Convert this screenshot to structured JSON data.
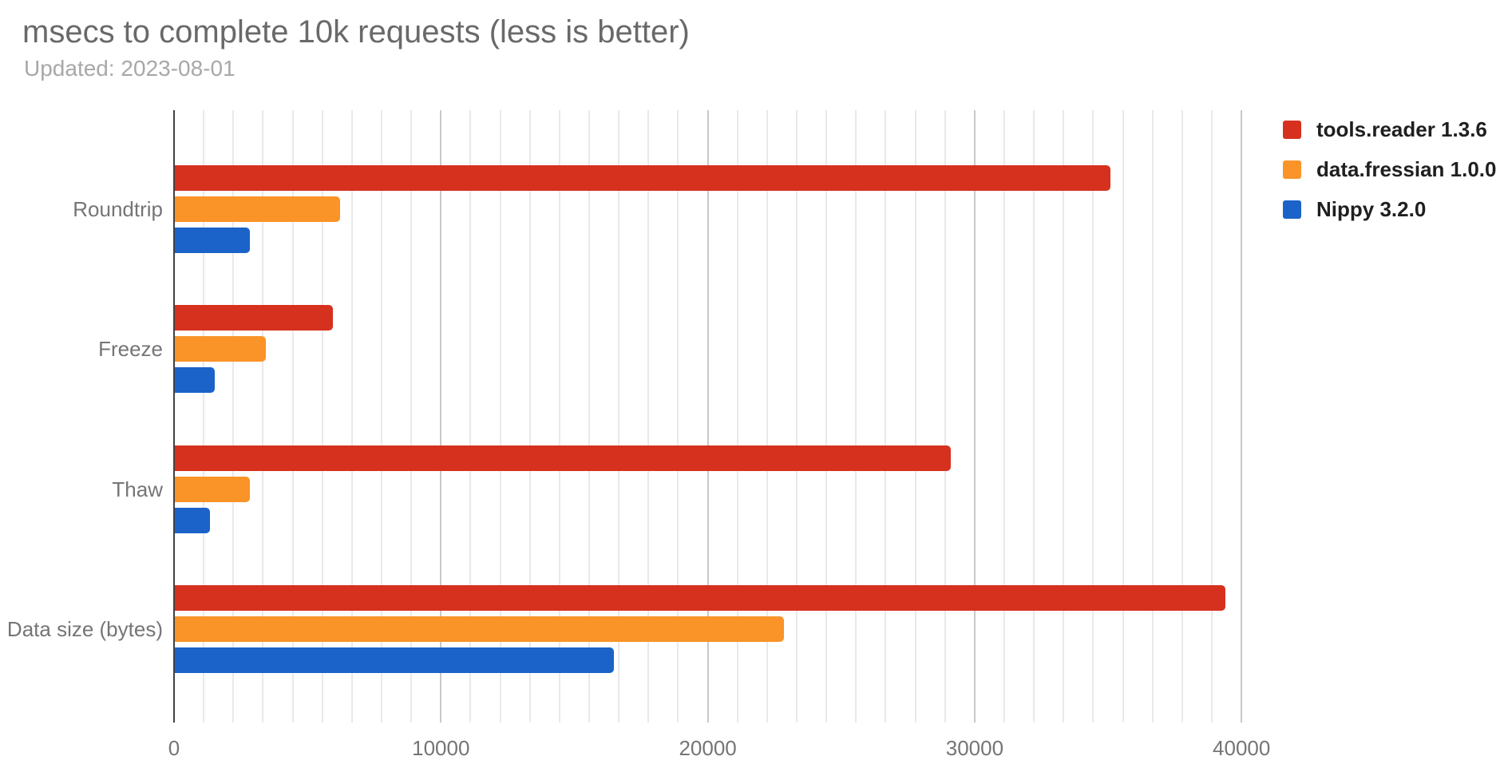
{
  "header": {
    "title": "msecs to complete 10k requests (less is better)",
    "subtitle": "Updated: 2023-08-01"
  },
  "chart_data": {
    "type": "bar",
    "orientation": "horizontal",
    "title": "msecs to complete 10k requests (less is better)",
    "subtitle": "Updated: 2023-08-01",
    "categories": [
      "Roundtrip",
      "Freeze",
      "Thaw",
      "Data size (bytes)"
    ],
    "series": [
      {
        "name": "tools.reader 1.3.6",
        "color": "#d5311e",
        "values": [
          35060,
          5920,
          29080,
          39360
        ]
      },
      {
        "name": "data.fressian 1.0.0",
        "color": "#fa9328",
        "values": [
          6190,
          3400,
          2810,
          22830
        ]
      },
      {
        "name": "Nippy 3.2.0",
        "color": "#1b63c8",
        "values": [
          2810,
          1490,
          1330,
          16440
        ]
      }
    ],
    "xlabel": "",
    "ylabel": "",
    "x_ticks": [
      0,
      10000,
      20000,
      30000,
      40000
    ],
    "x_tick_labels": [
      "0",
      "10000",
      "20000",
      "30000",
      "40000"
    ],
    "xlim": [
      0,
      47000
    ],
    "grid": true,
    "minor_gridlines_per_major": 8,
    "legend_position": "top-right",
    "colors": {
      "title": "#696969",
      "subtitle": "#a8a8a8",
      "axis_text": "#757575",
      "grid_minor": "#e9e9e9",
      "grid_major": "#c9c9c9",
      "axis_line": "#424242",
      "legend_text": "#1f1f1f",
      "background": "#ffffff"
    }
  }
}
